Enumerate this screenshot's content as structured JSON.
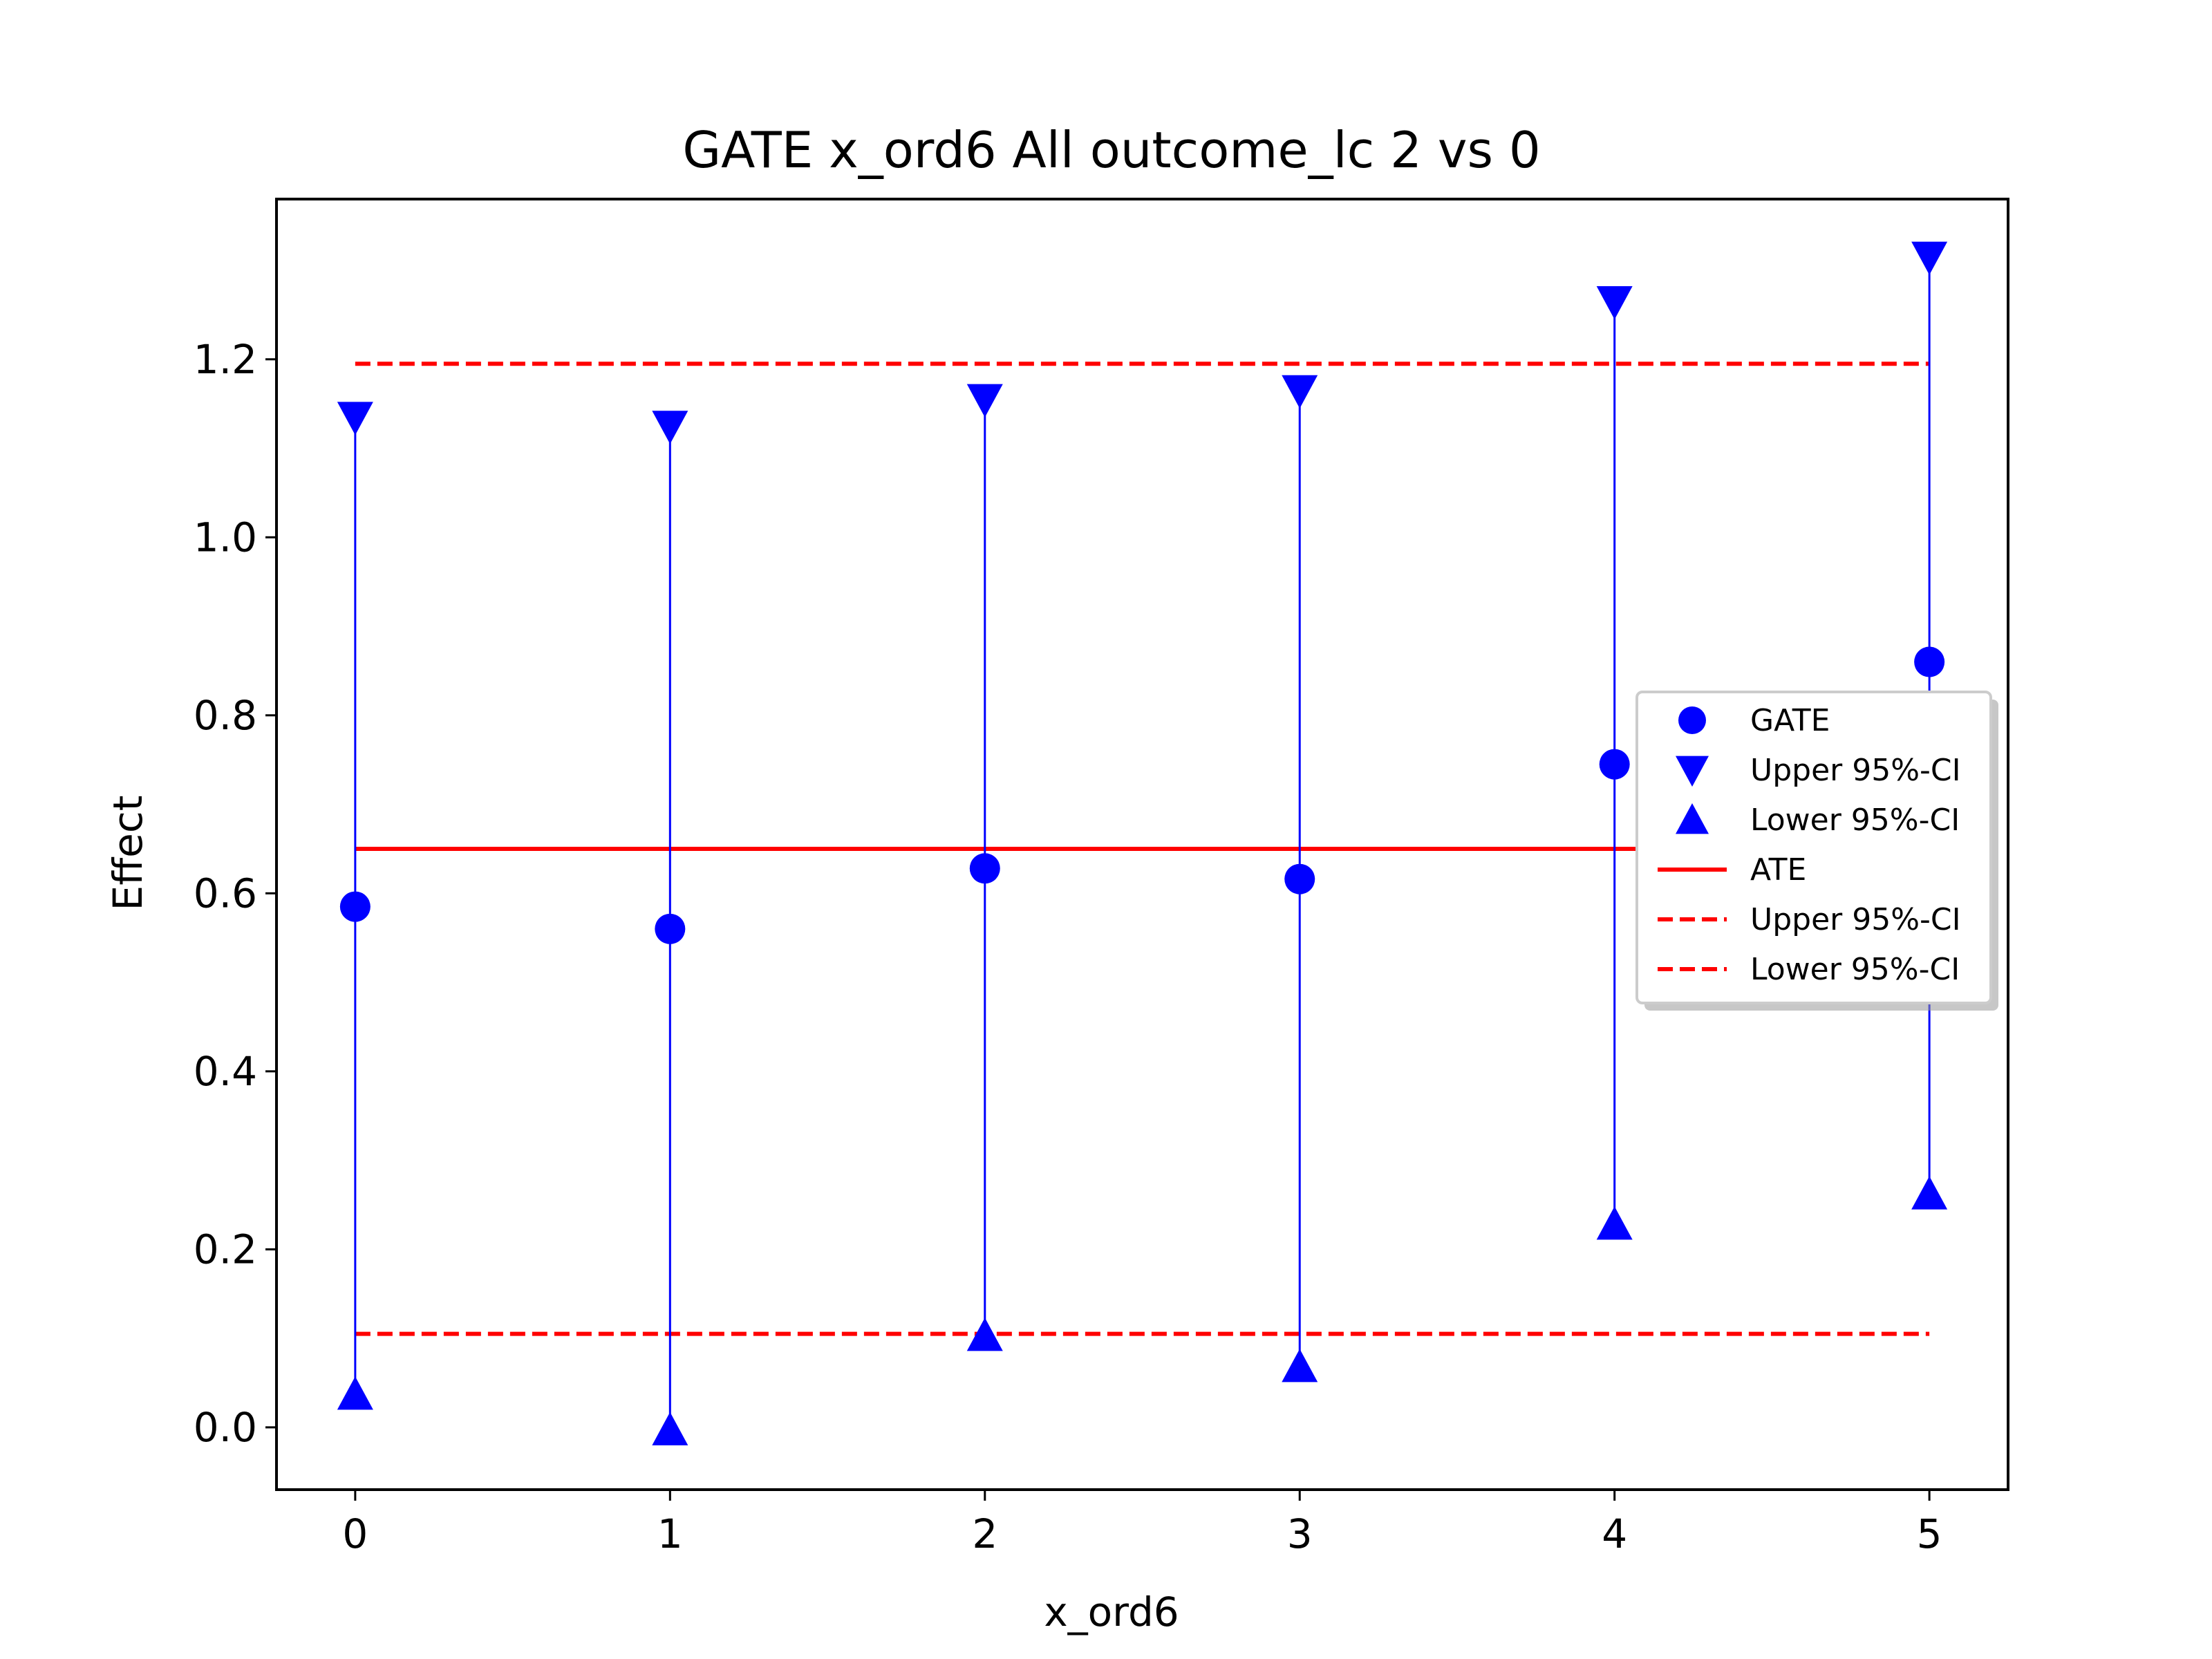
{
  "chart_data": {
    "type": "scatter",
    "title": "GATE x_ord6 All outcome_lc  2 vs 0",
    "xlabel": "x_ord6",
    "ylabel": "Effect",
    "xlim": [
      -0.25,
      5.25
    ],
    "ylim": [
      -0.07,
      1.38
    ],
    "xticks": [
      0,
      1,
      2,
      3,
      4,
      5
    ],
    "xtick_labels": [
      "0",
      "1",
      "2",
      "3",
      "4",
      "5"
    ],
    "yticks": [
      0.0,
      0.2,
      0.4,
      0.6,
      0.8,
      1.0,
      1.2
    ],
    "ytick_labels": [
      "0.0",
      "0.2",
      "0.4",
      "0.6",
      "0.8",
      "1.0",
      "1.2"
    ],
    "grid": false,
    "legend_position": "center-right",
    "colors": {
      "points": "#0000ff",
      "reference": "#ff0000"
    },
    "x": [
      0,
      1,
      2,
      3,
      4,
      5
    ],
    "gate": [
      0.585,
      0.56,
      0.628,
      0.616,
      0.745,
      0.86
    ],
    "upper_ci": [
      1.135,
      1.125,
      1.155,
      1.165,
      1.265,
      1.315
    ],
    "lower_ci": [
      0.037,
      -0.003,
      0.103,
      0.068,
      0.228,
      0.262
    ],
    "ate": 0.65,
    "ate_upper_ci": 1.195,
    "ate_lower_ci": 0.105,
    "legend": [
      "GATE",
      "Upper 95%-CI",
      "Lower 95%-CI",
      "ATE",
      "Upper 95%-CI",
      "Lower 95%-CI"
    ]
  }
}
